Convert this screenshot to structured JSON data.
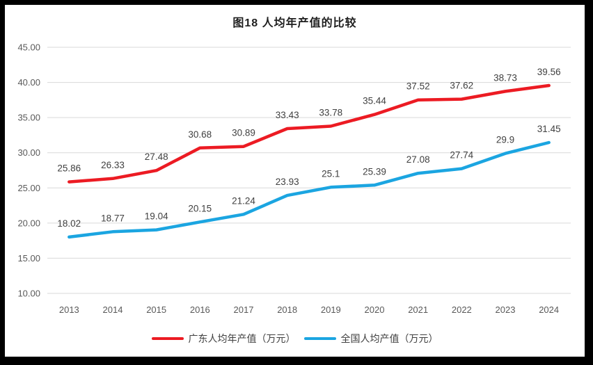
{
  "chart_data": {
    "type": "line",
    "title": "图18 人均年产值的比较",
    "categories": [
      "2013",
      "2014",
      "2015",
      "2016",
      "2017",
      "2018",
      "2019",
      "2020",
      "2021",
      "2022",
      "2023",
      "2024"
    ],
    "series": [
      {
        "name": "广东人均年产值（万元）",
        "color": "#EC1B23",
        "values": [
          25.86,
          26.33,
          27.48,
          30.68,
          30.89,
          33.43,
          33.78,
          35.44,
          37.52,
          37.62,
          38.73,
          39.56
        ]
      },
      {
        "name": "全国人均产值（万元）",
        "color": "#1BA5E1",
        "values": [
          18.02,
          18.77,
          19.04,
          20.15,
          21.24,
          23.93,
          25.1,
          25.39,
          27.08,
          27.74,
          29.9,
          31.45
        ]
      }
    ],
    "ylim": [
      10,
      45
    ],
    "yticks": [
      {
        "value": 10,
        "label": "10.00"
      },
      {
        "value": 15,
        "label": "15.00"
      },
      {
        "value": 20,
        "label": "20.00"
      },
      {
        "value": 25,
        "label": "25.00"
      },
      {
        "value": 30,
        "label": "30.00"
      },
      {
        "value": 35,
        "label": "35.00"
      },
      {
        "value": 40,
        "label": "40.00"
      },
      {
        "value": 45,
        "label": "45.00"
      }
    ],
    "xlabel": "",
    "ylabel": "",
    "grid": true,
    "legend_position": "bottom",
    "data_labels_shown": true,
    "colors": {
      "gridline": "#D9D9D9",
      "axis_label": "#595959",
      "data_label": "#404040",
      "background": "#FFFFFF",
      "frame": "#000000"
    }
  }
}
